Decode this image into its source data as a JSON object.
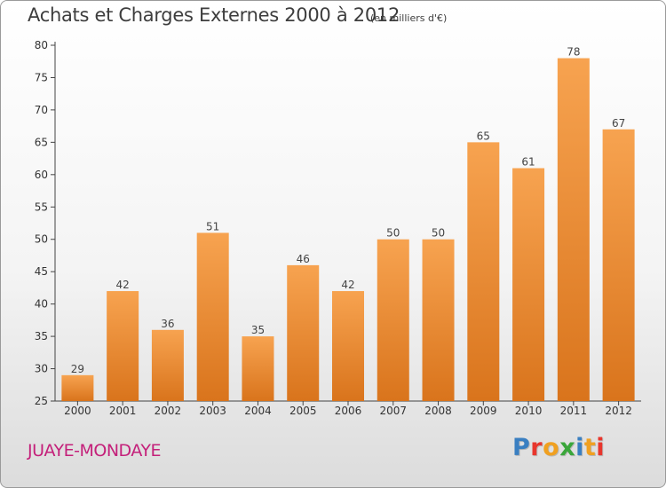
{
  "title": "Achats et Charges Externes 2000 à 2012",
  "subtitle": "(en milliers d'€)",
  "commune": "JUAYE-MONDAYE",
  "brand": {
    "text": "Proxiti",
    "letter_colors": [
      "#3a7fc1",
      "#e8362d",
      "#f0a020",
      "#3aa63a",
      "#3a7fc1",
      "#f0a020",
      "#e8362d"
    ]
  },
  "colors": {
    "bar_top": "#f7a350",
    "bar_bottom": "#d9741c",
    "title": "#3d3d3d",
    "commune": "#c4207a",
    "axis": "#444444"
  },
  "chart_data": {
    "type": "bar",
    "categories": [
      "2000",
      "2001",
      "2002",
      "2003",
      "2004",
      "2005",
      "2006",
      "2007",
      "2008",
      "2009",
      "2010",
      "2011",
      "2012"
    ],
    "values": [
      29,
      42,
      36,
      51,
      35,
      46,
      42,
      50,
      50,
      65,
      61,
      78,
      67
    ],
    "ylim": [
      25,
      80
    ],
    "yticks": [
      25,
      30,
      35,
      40,
      45,
      50,
      55,
      60,
      65,
      70,
      75,
      80
    ],
    "xlabel": "",
    "ylabel": "",
    "grid": false,
    "data_labels": true
  }
}
